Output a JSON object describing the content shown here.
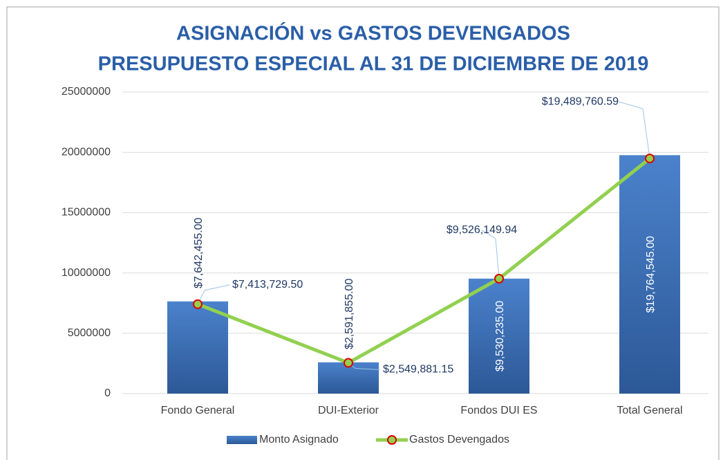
{
  "chart_data": {
    "type": "bar",
    "title": "ASIGNACIÓN vs GASTOS DEVENGADOS",
    "subtitle": "PRESUPUESTO ESPECIAL AL 31 DE DICIEMBRE DE 2019",
    "categories": [
      "Fondo General",
      "DUI-Exterior",
      "Fondos DUI ES",
      "Total General"
    ],
    "series": [
      {
        "name": "Monto Asignado",
        "type": "bar",
        "color": "#3a6fb8",
        "values": [
          7642455,
          2591855,
          9530235,
          19764545
        ],
        "value_labels": [
          "$7,642,455.00",
          "$2,591,855.00",
          "$9,530,235.00",
          "$19,764,545.00"
        ]
      },
      {
        "name": "Gastos Devengados",
        "type": "line",
        "color": "#92d050",
        "marker_edge": "#e00000",
        "values": [
          7413729.5,
          2549881.15,
          9526149.94,
          19489760.59
        ],
        "value_labels": [
          "$7,413,729.50",
          "$2,549,881.15",
          "$9,526,149.94",
          "$19,489,760.59"
        ]
      }
    ],
    "ylim": [
      0,
      25000000
    ],
    "yticks": [
      0,
      5000000,
      10000000,
      15000000,
      20000000,
      25000000
    ],
    "grid": true,
    "legend": "bottom"
  }
}
